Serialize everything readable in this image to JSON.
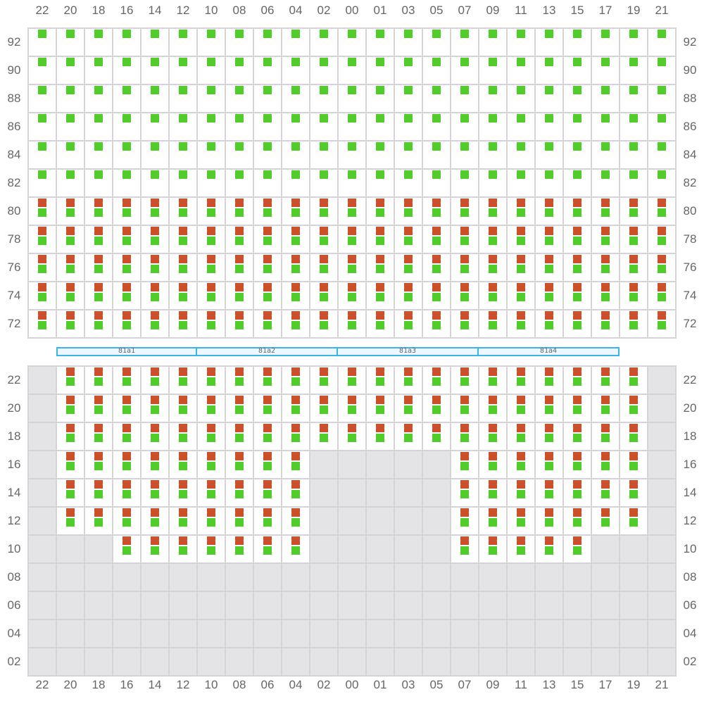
{
  "columns": [
    "22",
    "20",
    "18",
    "16",
    "14",
    "12",
    "10",
    "08",
    "06",
    "04",
    "02",
    "00",
    "01",
    "03",
    "05",
    "07",
    "09",
    "11",
    "13",
    "15",
    "17",
    "19",
    "21"
  ],
  "colors": {
    "red": "#cc512a",
    "green": "#52cc2a",
    "unavailable": "#e4e4e6",
    "band_border": "#3ab4ec"
  },
  "top_section": {
    "rows": [
      {
        "label": "92",
        "type": "green"
      },
      {
        "label": "90",
        "type": "green"
      },
      {
        "label": "88",
        "type": "green"
      },
      {
        "label": "86",
        "type": "green"
      },
      {
        "label": "84",
        "type": "green"
      },
      {
        "label": "82",
        "type": "green"
      },
      {
        "label": "80",
        "type": "red-green"
      },
      {
        "label": "78",
        "type": "red-green"
      },
      {
        "label": "76",
        "type": "red-green"
      },
      {
        "label": "74",
        "type": "red-green"
      },
      {
        "label": "72",
        "type": "red-green"
      }
    ]
  },
  "bands": [
    "81a1",
    "81a2",
    "81a3",
    "81a4"
  ],
  "bottom_section": {
    "rows": [
      {
        "label": "22",
        "available": "01111111111111111111110"
      },
      {
        "label": "20",
        "available": "01111111111111111111110"
      },
      {
        "label": "18",
        "available": "01111111111111111111110"
      },
      {
        "label": "16",
        "available": "01111111110000011111110"
      },
      {
        "label": "14",
        "available": "01111111110000011111110"
      },
      {
        "label": "12",
        "available": "01111111110000011111110"
      },
      {
        "label": "10",
        "available": "00011111110000011111000"
      },
      {
        "label": "08",
        "available": "00000000000000000000000"
      },
      {
        "label": "06",
        "available": "00000000000000000000000"
      },
      {
        "label": "04",
        "available": "00000000000000000000000"
      },
      {
        "label": "02",
        "available": "00000000000000000000000"
      }
    ]
  }
}
